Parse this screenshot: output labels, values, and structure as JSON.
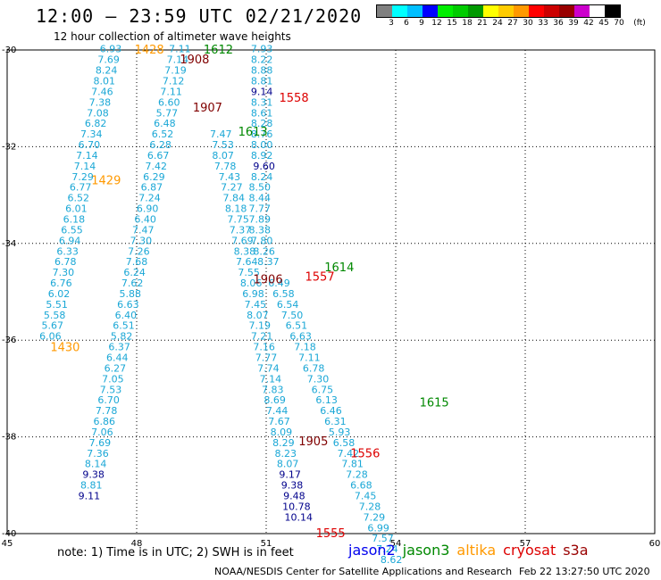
{
  "title": "12:00 – 23:59 UTC 02/21/2020",
  "subtitle": "12 hour collection of altimeter wave heights",
  "colorbar": {
    "colors": [
      "#808080",
      "#00ffff",
      "#00bfff",
      "#0000ff",
      "#00ee00",
      "#00cc00",
      "#009900",
      "#ffff00",
      "#ffcc00",
      "#ff9900",
      "#ff0000",
      "#cc0000",
      "#990000",
      "#cc00cc",
      "#ffffff",
      "#000000"
    ],
    "labels": [
      "3",
      "6",
      "9",
      "12",
      "15",
      "18",
      "21",
      "24",
      "27",
      "30",
      "33",
      "36",
      "39",
      "42",
      "45",
      "70",
      "(ft)"
    ]
  },
  "axes": {
    "lon_ticks": [
      "45",
      "48",
      "51",
      "54",
      "57",
      "60"
    ],
    "lat_ticks": [
      "-30",
      "-32",
      "-34",
      "-36",
      "-38",
      "-40"
    ]
  },
  "colors": {
    "cyan": "#1aa7d6",
    "navy": "#00008b",
    "darkred": "#800000",
    "black": "#000000",
    "orange": "#ff9900",
    "green": "#008800",
    "red": "#dd0000"
  },
  "passes": [
    {
      "label": "1428",
      "color": "orange",
      "lon": 47.95,
      "lat": -30.0
    },
    {
      "label": "1612",
      "color": "green",
      "lon": 49.55,
      "lat": -30.0
    },
    {
      "label": "1908",
      "color": "darkred",
      "lon": 49.0,
      "lat": -30.2
    },
    {
      "label": "1558",
      "color": "red",
      "lon": 51.3,
      "lat": -31.0
    },
    {
      "label": "1907",
      "color": "darkred",
      "lon": 49.3,
      "lat": -31.2
    },
    {
      "label": "1613",
      "color": "green",
      "lon": 50.35,
      "lat": -31.7
    },
    {
      "label": "1429",
      "color": "orange",
      "lon": 46.95,
      "lat": -32.7
    },
    {
      "label": "1614",
      "color": "green",
      "lon": 52.35,
      "lat": -34.5
    },
    {
      "label": "1557",
      "color": "red",
      "lon": 51.9,
      "lat": -34.7
    },
    {
      "label": "1906",
      "color": "darkred",
      "lon": 50.7,
      "lat": -34.75
    },
    {
      "label": "1430",
      "color": "orange",
      "lon": 46.0,
      "lat": -36.15
    },
    {
      "label": "1615",
      "color": "green",
      "lon": 54.55,
      "lat": -37.3
    },
    {
      "label": "1905",
      "color": "darkred",
      "lon": 51.75,
      "lat": -38.1
    },
    {
      "label": "1556",
      "color": "red",
      "lon": 52.95,
      "lat": -38.35
    },
    {
      "label": "1555",
      "color": "red",
      "lon": 52.15,
      "lat": -40.0
    }
  ],
  "observations": [
    {
      "v": "6.93",
      "lon": 47.4,
      "lat": -30.05,
      "c": "cyan"
    },
    {
      "v": "7.69",
      "lon": 47.35,
      "lat": -30.27,
      "c": "cyan"
    },
    {
      "v": "8.24",
      "lon": 47.3,
      "lat": -30.49,
      "c": "cyan"
    },
    {
      "v": "8.01",
      "lon": 47.25,
      "lat": -30.71,
      "c": "cyan"
    },
    {
      "v": "7.46",
      "lon": 47.2,
      "lat": -30.93,
      "c": "cyan"
    },
    {
      "v": "7.38",
      "lon": 47.15,
      "lat": -31.15,
      "c": "cyan"
    },
    {
      "v": "7.08",
      "lon": 47.1,
      "lat": -31.37,
      "c": "cyan"
    },
    {
      "v": "6.82",
      "lon": 47.05,
      "lat": -31.59,
      "c": "cyan"
    },
    {
      "v": "7.34",
      "lon": 46.95,
      "lat": -31.81,
      "c": "cyan"
    },
    {
      "v": "6.70",
      "lon": 46.9,
      "lat": -32.03,
      "c": "cyan"
    },
    {
      "v": "7.14",
      "lon": 46.85,
      "lat": -32.25,
      "c": "cyan"
    },
    {
      "v": "7.14",
      "lon": 46.8,
      "lat": -32.47,
      "c": "cyan"
    },
    {
      "v": "7.29",
      "lon": 46.75,
      "lat": -32.69,
      "c": "cyan"
    },
    {
      "v": "6.77",
      "lon": 46.7,
      "lat": -32.91,
      "c": "cyan"
    },
    {
      "v": "6.52",
      "lon": 46.65,
      "lat": -33.13,
      "c": "cyan"
    },
    {
      "v": "6.01",
      "lon": 46.6,
      "lat": -33.35,
      "c": "cyan"
    },
    {
      "v": "6.18",
      "lon": 46.55,
      "lat": -33.57,
      "c": "cyan"
    },
    {
      "v": "6.55",
      "lon": 46.5,
      "lat": -33.79,
      "c": "cyan"
    },
    {
      "v": "6.94",
      "lon": 46.45,
      "lat": -34.01,
      "c": "cyan"
    },
    {
      "v": "6.33",
      "lon": 46.4,
      "lat": -34.23,
      "c": "cyan"
    },
    {
      "v": "6.78",
      "lon": 46.35,
      "lat": -34.45,
      "c": "cyan"
    },
    {
      "v": "7.30",
      "lon": 46.3,
      "lat": -34.67,
      "c": "cyan"
    },
    {
      "v": "6.76",
      "lon": 46.25,
      "lat": -34.89,
      "c": "cyan"
    },
    {
      "v": "6.02",
      "lon": 46.2,
      "lat": -35.11,
      "c": "cyan"
    },
    {
      "v": "5.51",
      "lon": 46.15,
      "lat": -35.33,
      "c": "cyan"
    },
    {
      "v": "5.58",
      "lon": 46.1,
      "lat": -35.55,
      "c": "cyan"
    },
    {
      "v": "5.67",
      "lon": 46.05,
      "lat": -35.77,
      "c": "cyan"
    },
    {
      "v": "6.06",
      "lon": 46.0,
      "lat": -35.99,
      "c": "cyan"
    },
    {
      "v": "7.11",
      "lon": 49.0,
      "lat": -30.05,
      "c": "cyan"
    },
    {
      "v": "7.14",
      "lon": 48.95,
      "lat": -30.27,
      "c": "cyan"
    },
    {
      "v": "7.19",
      "lon": 48.9,
      "lat": -30.49,
      "c": "cyan"
    },
    {
      "v": "7.12",
      "lon": 48.85,
      "lat": -30.71,
      "c": "cyan"
    },
    {
      "v": "7.11",
      "lon": 48.8,
      "lat": -30.93,
      "c": "cyan"
    },
    {
      "v": "6.60",
      "lon": 48.75,
      "lat": -31.15,
      "c": "cyan"
    },
    {
      "v": "5.77",
      "lon": 48.7,
      "lat": -31.37,
      "c": "cyan"
    },
    {
      "v": "6.48",
      "lon": 48.65,
      "lat": -31.59,
      "c": "cyan"
    },
    {
      "v": "6.52",
      "lon": 48.6,
      "lat": -31.81,
      "c": "cyan"
    },
    {
      "v": "6.28",
      "lon": 48.55,
      "lat": -32.03,
      "c": "cyan"
    },
    {
      "v": "6.67",
      "lon": 48.5,
      "lat": -32.25,
      "c": "cyan"
    },
    {
      "v": "7.42",
      "lon": 48.45,
      "lat": -32.47,
      "c": "cyan"
    },
    {
      "v": "6.29",
      "lon": 48.4,
      "lat": -32.69,
      "c": "cyan"
    },
    {
      "v": "6.87",
      "lon": 48.35,
      "lat": -32.91,
      "c": "cyan"
    },
    {
      "v": "7.24",
      "lon": 48.3,
      "lat": -33.13,
      "c": "cyan"
    },
    {
      "v": "6.90",
      "lon": 48.25,
      "lat": -33.35,
      "c": "cyan"
    },
    {
      "v": "6.40",
      "lon": 48.2,
      "lat": -33.57,
      "c": "cyan"
    },
    {
      "v": "7.47",
      "lon": 48.15,
      "lat": -33.79,
      "c": "cyan"
    },
    {
      "v": "7.30",
      "lon": 48.1,
      "lat": -34.01,
      "c": "cyan"
    },
    {
      "v": "7.26",
      "lon": 48.05,
      "lat": -34.23,
      "c": "cyan"
    },
    {
      "v": "7.68",
      "lon": 48.0,
      "lat": -34.45,
      "c": "cyan"
    },
    {
      "v": "6.24",
      "lon": 47.95,
      "lat": -34.67,
      "c": "cyan"
    },
    {
      "v": "7.62",
      "lon": 47.9,
      "lat": -34.89,
      "c": "cyan"
    },
    {
      "v": "5.88",
      "lon": 47.85,
      "lat": -35.11,
      "c": "cyan"
    },
    {
      "v": "6.63",
      "lon": 47.8,
      "lat": -35.33,
      "c": "cyan"
    },
    {
      "v": "6.40",
      "lon": 47.75,
      "lat": -35.55,
      "c": "cyan"
    },
    {
      "v": "6.51",
      "lon": 47.7,
      "lat": -35.77,
      "c": "cyan"
    },
    {
      "v": "5.82",
      "lon": 47.65,
      "lat": -35.99,
      "c": "cyan"
    },
    {
      "v": "6.37",
      "lon": 47.6,
      "lat": -36.21,
      "c": "cyan"
    },
    {
      "v": "6.44",
      "lon": 47.55,
      "lat": -36.43,
      "c": "cyan"
    },
    {
      "v": "6.27",
      "lon": 47.5,
      "lat": -36.65,
      "c": "cyan"
    },
    {
      "v": "7.05",
      "lon": 47.45,
      "lat": -36.87,
      "c": "cyan"
    },
    {
      "v": "7.53",
      "lon": 47.4,
      "lat": -37.09,
      "c": "cyan"
    },
    {
      "v": "6.70",
      "lon": 47.35,
      "lat": -37.31,
      "c": "cyan"
    },
    {
      "v": "7.78",
      "lon": 47.3,
      "lat": -37.53,
      "c": "cyan"
    },
    {
      "v": "6.86",
      "lon": 47.25,
      "lat": -37.75,
      "c": "cyan"
    },
    {
      "v": "7.06",
      "lon": 47.2,
      "lat": -37.97,
      "c": "cyan"
    },
    {
      "v": "7.69",
      "lon": 47.15,
      "lat": -38.19,
      "c": "cyan"
    },
    {
      "v": "7.36",
      "lon": 47.1,
      "lat": -38.41,
      "c": "cyan"
    },
    {
      "v": "8.14",
      "lon": 47.05,
      "lat": -38.63,
      "c": "cyan"
    },
    {
      "v": "9.38",
      "lon": 47.0,
      "lat": -38.85,
      "c": "navy"
    },
    {
      "v": "8.81",
      "lon": 46.95,
      "lat": -39.07,
      "c": "cyan"
    },
    {
      "v": "9.11",
      "lon": 46.9,
      "lat": -39.29,
      "c": "navy"
    },
    {
      "v": "7.93",
      "lon": 50.9,
      "lat": -30.05,
      "c": "cyan"
    },
    {
      "v": "8.22",
      "lon": 50.9,
      "lat": -30.27,
      "c": "cyan"
    },
    {
      "v": "8.88",
      "lon": 50.9,
      "lat": -30.49,
      "c": "cyan"
    },
    {
      "v": "8.81",
      "lon": 50.9,
      "lat": -30.71,
      "c": "cyan"
    },
    {
      "v": "9.14",
      "lon": 50.9,
      "lat": -30.93,
      "c": "navy"
    },
    {
      "v": "8.31",
      "lon": 50.9,
      "lat": -31.15,
      "c": "cyan"
    },
    {
      "v": "8.61",
      "lon": 50.9,
      "lat": -31.37,
      "c": "cyan"
    },
    {
      "v": "8.28",
      "lon": 50.9,
      "lat": -31.59,
      "c": "cyan"
    },
    {
      "v": "8.76",
      "lon": 50.9,
      "lat": -31.81,
      "c": "cyan"
    },
    {
      "v": "8.00",
      "lon": 50.9,
      "lat": -32.03,
      "c": "cyan"
    },
    {
      "v": "8.92",
      "lon": 50.9,
      "lat": -32.25,
      "c": "cyan"
    },
    {
      "v": "9.60",
      "lon": 50.95,
      "lat": -32.47,
      "c": "navy"
    },
    {
      "v": "8.24",
      "lon": 50.9,
      "lat": -32.69,
      "c": "cyan"
    },
    {
      "v": "8.50",
      "lon": 50.85,
      "lat": -32.91,
      "c": "cyan"
    },
    {
      "v": "8.44",
      "lon": 50.85,
      "lat": -33.13,
      "c": "cyan"
    },
    {
      "v": "7.77",
      "lon": 50.85,
      "lat": -33.35,
      "c": "cyan"
    },
    {
      "v": "7.89",
      "lon": 50.85,
      "lat": -33.57,
      "c": "cyan"
    },
    {
      "v": "8.38",
      "lon": 50.85,
      "lat": -33.79,
      "c": "cyan"
    },
    {
      "v": "7.80",
      "lon": 50.9,
      "lat": -34.01,
      "c": "cyan"
    },
    {
      "v": "8.26",
      "lon": 50.95,
      "lat": -34.23,
      "c": "cyan"
    },
    {
      "v": "8.37",
      "lon": 51.05,
      "lat": -34.45,
      "c": "cyan"
    },
    {
      "v": "7.47",
      "lon": 49.95,
      "lat": -31.81,
      "c": "cyan"
    },
    {
      "v": "7.53",
      "lon": 50.0,
      "lat": -32.03,
      "c": "cyan"
    },
    {
      "v": "8.07",
      "lon": 50.0,
      "lat": -32.25,
      "c": "cyan"
    },
    {
      "v": "7.78",
      "lon": 50.05,
      "lat": -32.47,
      "c": "cyan"
    },
    {
      "v": "7.43",
      "lon": 50.15,
      "lat": -32.69,
      "c": "cyan"
    },
    {
      "v": "7.27",
      "lon": 50.2,
      "lat": -32.91,
      "c": "cyan"
    },
    {
      "v": "7.84",
      "lon": 50.25,
      "lat": -33.13,
      "c": "cyan"
    },
    {
      "v": "8.18",
      "lon": 50.3,
      "lat": -33.35,
      "c": "cyan"
    },
    {
      "v": "7.75",
      "lon": 50.35,
      "lat": -33.57,
      "c": "cyan"
    },
    {
      "v": "7.37",
      "lon": 50.4,
      "lat": -33.79,
      "c": "cyan"
    },
    {
      "v": "7.69",
      "lon": 50.45,
      "lat": -34.01,
      "c": "cyan"
    },
    {
      "v": "8.38",
      "lon": 50.5,
      "lat": -34.23,
      "c": "cyan"
    },
    {
      "v": "7.64",
      "lon": 50.55,
      "lat": -34.45,
      "c": "cyan"
    },
    {
      "v": "7.55",
      "lon": 50.6,
      "lat": -34.67,
      "c": "cyan"
    },
    {
      "v": "8.06",
      "lon": 50.65,
      "lat": -34.89,
      "c": "cyan"
    },
    {
      "v": "6.98",
      "lon": 50.7,
      "lat": -35.11,
      "c": "cyan"
    },
    {
      "v": "7.45",
      "lon": 50.75,
      "lat": -35.33,
      "c": "cyan"
    },
    {
      "v": "8.07",
      "lon": 50.8,
      "lat": -35.55,
      "c": "cyan"
    },
    {
      "v": "7.19",
      "lon": 50.85,
      "lat": -35.77,
      "c": "cyan"
    },
    {
      "v": "7.21",
      "lon": 50.9,
      "lat": -35.99,
      "c": "cyan"
    },
    {
      "v": "7.16",
      "lon": 50.95,
      "lat": -36.21,
      "c": "cyan"
    },
    {
      "v": "7.77",
      "lon": 51.0,
      "lat": -36.43,
      "c": "cyan"
    },
    {
      "v": "7.74",
      "lon": 51.05,
      "lat": -36.65,
      "c": "cyan"
    },
    {
      "v": "7.14",
      "lon": 51.1,
      "lat": -36.87,
      "c": "cyan"
    },
    {
      "v": "7.83",
      "lon": 51.15,
      "lat": -37.09,
      "c": "cyan"
    },
    {
      "v": "8.69",
      "lon": 51.2,
      "lat": -37.31,
      "c": "cyan"
    },
    {
      "v": "7.44",
      "lon": 51.25,
      "lat": -37.53,
      "c": "cyan"
    },
    {
      "v": "7.67",
      "lon": 51.3,
      "lat": -37.75,
      "c": "cyan"
    },
    {
      "v": "8.09",
      "lon": 51.35,
      "lat": -37.97,
      "c": "cyan"
    },
    {
      "v": "8.29",
      "lon": 51.4,
      "lat": -38.19,
      "c": "cyan"
    },
    {
      "v": "8.23",
      "lon": 51.45,
      "lat": -38.41,
      "c": "cyan"
    },
    {
      "v": "8.07",
      "lon": 51.5,
      "lat": -38.63,
      "c": "cyan"
    },
    {
      "v": "9.17",
      "lon": 51.55,
      "lat": -38.85,
      "c": "navy"
    },
    {
      "v": "9.38",
      "lon": 51.6,
      "lat": -39.07,
      "c": "navy"
    },
    {
      "v": "9.48",
      "lon": 51.65,
      "lat": -39.29,
      "c": "navy"
    },
    {
      "v": "10.78",
      "lon": 51.7,
      "lat": -39.51,
      "c": "navy"
    },
    {
      "v": "10.14",
      "lon": 51.75,
      "lat": -39.73,
      "c": "navy"
    },
    {
      "v": "6.49",
      "lon": 51.3,
      "lat": -34.89,
      "c": "cyan"
    },
    {
      "v": "6.58",
      "lon": 51.4,
      "lat": -35.11,
      "c": "cyan"
    },
    {
      "v": "6.54",
      "lon": 51.5,
      "lat": -35.33,
      "c": "cyan"
    },
    {
      "v": "7.50",
      "lon": 51.6,
      "lat": -35.55,
      "c": "cyan"
    },
    {
      "v": "6.51",
      "lon": 51.7,
      "lat": -35.77,
      "c": "cyan"
    },
    {
      "v": "6.63",
      "lon": 51.8,
      "lat": -35.99,
      "c": "cyan"
    },
    {
      "v": "7.18",
      "lon": 51.9,
      "lat": -36.21,
      "c": "cyan"
    },
    {
      "v": "7.11",
      "lon": 52.0,
      "lat": -36.43,
      "c": "cyan"
    },
    {
      "v": "6.78",
      "lon": 52.1,
      "lat": -36.65,
      "c": "cyan"
    },
    {
      "v": "7.30",
      "lon": 52.2,
      "lat": -36.87,
      "c": "cyan"
    },
    {
      "v": "6.75",
      "lon": 52.3,
      "lat": -37.09,
      "c": "cyan"
    },
    {
      "v": "6.13",
      "lon": 52.4,
      "lat": -37.31,
      "c": "cyan"
    },
    {
      "v": "6.46",
      "lon": 52.5,
      "lat": -37.53,
      "c": "cyan"
    },
    {
      "v": "6.31",
      "lon": 52.6,
      "lat": -37.75,
      "c": "cyan"
    },
    {
      "v": "5.93",
      "lon": 52.7,
      "lat": -37.97,
      "c": "cyan"
    },
    {
      "v": "6.58",
      "lon": 52.8,
      "lat": -38.19,
      "c": "cyan"
    },
    {
      "v": "7.42",
      "lon": 52.9,
      "lat": -38.41,
      "c": "cyan"
    },
    {
      "v": "7.81",
      "lon": 53.0,
      "lat": -38.63,
      "c": "cyan"
    },
    {
      "v": "7.28",
      "lon": 53.1,
      "lat": -38.85,
      "c": "cyan"
    },
    {
      "v": "6.68",
      "lon": 53.2,
      "lat": -39.07,
      "c": "cyan"
    },
    {
      "v": "7.45",
      "lon": 53.3,
      "lat": -39.29,
      "c": "cyan"
    },
    {
      "v": "7.28",
      "lon": 53.4,
      "lat": -39.51,
      "c": "cyan"
    },
    {
      "v": "7.29",
      "lon": 53.5,
      "lat": -39.73,
      "c": "cyan"
    },
    {
      "v": "6.99",
      "lon": 53.6,
      "lat": -39.95,
      "c": "cyan"
    },
    {
      "v": "7.57",
      "lon": 53.7,
      "lat": -40.17,
      "c": "cyan"
    },
    {
      "v": "7.24",
      "lon": 53.8,
      "lat": -40.39,
      "c": "cyan"
    },
    {
      "v": "8.62",
      "lon": 53.9,
      "lat": -40.61,
      "c": "cyan"
    }
  ],
  "note": "note:  1) Time is in UTC; 2) SWH is in feet",
  "legend": [
    {
      "label": "jason2",
      "color": "#0000ee"
    },
    {
      "label": "jason3",
      "color": "#008800"
    },
    {
      "label": "altika",
      "color": "#ff9900"
    },
    {
      "label": "cryosat",
      "color": "#dd0000"
    },
    {
      "label": "s3a",
      "color": "#990000"
    }
  ],
  "footer": "NOAA/NESDIS Center for Satellite Applications and Research",
  "footer_date": "Feb 22 13:27:50 UTC 2020"
}
